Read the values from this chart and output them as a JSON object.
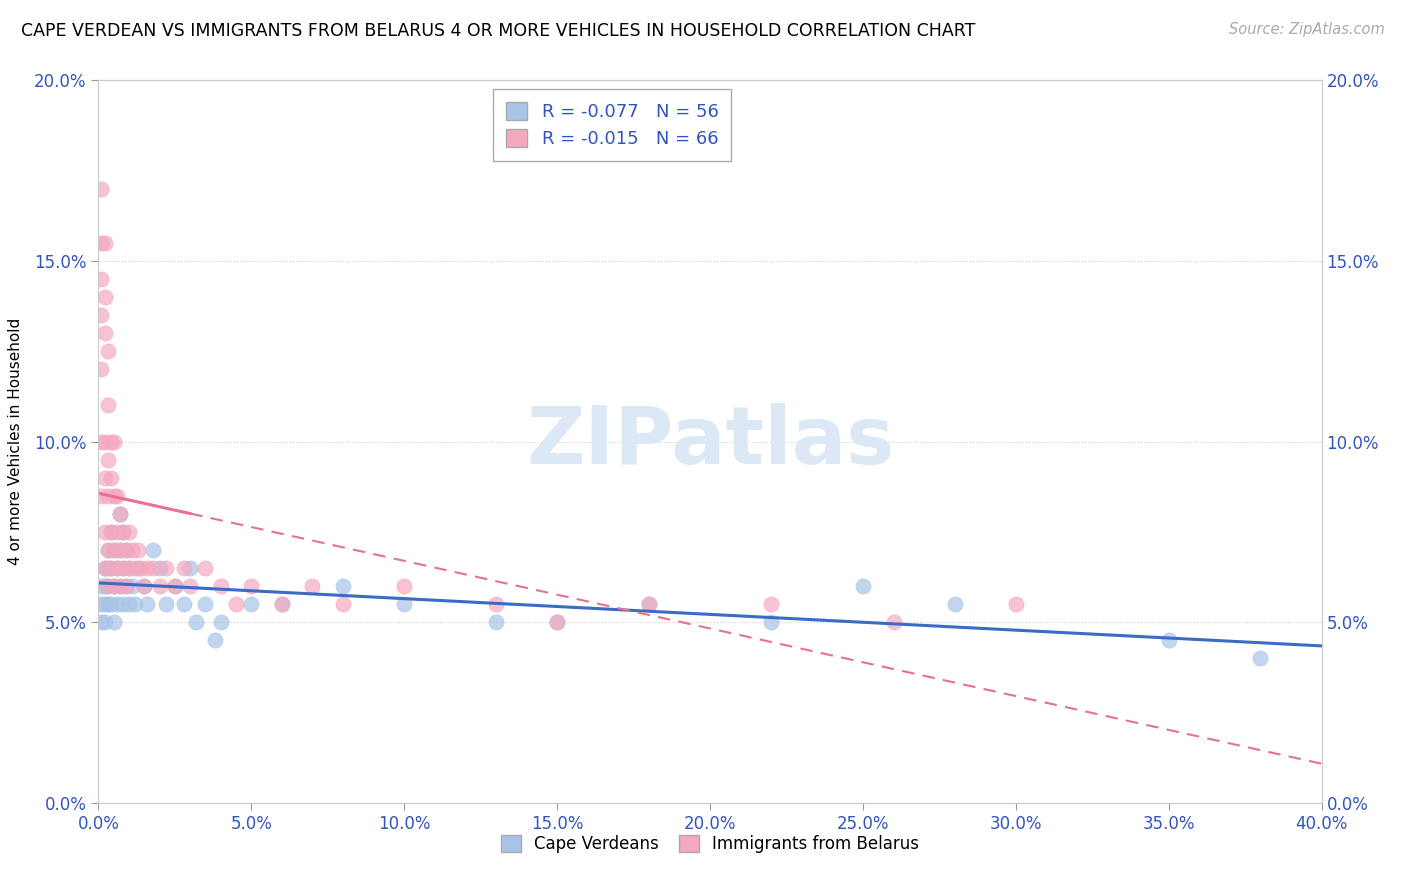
{
  "title": "CAPE VERDEAN VS IMMIGRANTS FROM BELARUS 4 OR MORE VEHICLES IN HOUSEHOLD CORRELATION CHART",
  "source": "Source: ZipAtlas.com",
  "ylabel": "4 or more Vehicles in Household",
  "xlim": [
    0.0,
    0.4
  ],
  "ylim": [
    0.0,
    0.2
  ],
  "xticks": [
    0.0,
    0.05,
    0.1,
    0.15,
    0.2,
    0.25,
    0.3,
    0.35,
    0.4
  ],
  "yticks": [
    0.0,
    0.05,
    0.1,
    0.15,
    0.2
  ],
  "xticklabels": [
    "0.0%",
    "5.0%",
    "10.0%",
    "15.0%",
    "20.0%",
    "25.0%",
    "30.0%",
    "35.0%",
    "40.0%"
  ],
  "yticklabels": [
    "0.0%",
    "5.0%",
    "10.0%",
    "15.0%",
    "20.0%"
  ],
  "series1_label": "Cape Verdeans",
  "series1_color": "#a8c4e8",
  "series1_line_color": "#3b6cc4",
  "series1_R": -0.077,
  "series1_N": 56,
  "series2_label": "Immigrants from Belarus",
  "series2_color": "#f4a8be",
  "series2_line_color": "#e87090",
  "series2_R": -0.015,
  "series2_N": 66,
  "legend_text_color": "#3355bb",
  "watermark": "ZIPatlas",
  "watermark_color": "#dce8f5",
  "series1_x": [
    0.001,
    0.001,
    0.001,
    0.002,
    0.002,
    0.002,
    0.002,
    0.003,
    0.003,
    0.003,
    0.003,
    0.004,
    0.004,
    0.004,
    0.005,
    0.005,
    0.005,
    0.006,
    0.006,
    0.007,
    0.007,
    0.007,
    0.008,
    0.008,
    0.008,
    0.009,
    0.009,
    0.01,
    0.01,
    0.011,
    0.012,
    0.013,
    0.015,
    0.016,
    0.018,
    0.02,
    0.022,
    0.025,
    0.028,
    0.03,
    0.032,
    0.035,
    0.038,
    0.04,
    0.05,
    0.06,
    0.08,
    0.1,
    0.13,
    0.15,
    0.18,
    0.22,
    0.25,
    0.28,
    0.35,
    0.38
  ],
  "series1_y": [
    0.06,
    0.055,
    0.05,
    0.065,
    0.06,
    0.055,
    0.05,
    0.07,
    0.065,
    0.06,
    0.055,
    0.075,
    0.065,
    0.055,
    0.07,
    0.06,
    0.05,
    0.065,
    0.055,
    0.08,
    0.07,
    0.06,
    0.075,
    0.065,
    0.055,
    0.07,
    0.06,
    0.065,
    0.055,
    0.06,
    0.055,
    0.065,
    0.06,
    0.055,
    0.07,
    0.065,
    0.055,
    0.06,
    0.055,
    0.065,
    0.05,
    0.055,
    0.045,
    0.05,
    0.055,
    0.055,
    0.06,
    0.055,
    0.05,
    0.05,
    0.055,
    0.05,
    0.06,
    0.055,
    0.045,
    0.04
  ],
  "series2_x": [
    0.001,
    0.001,
    0.001,
    0.001,
    0.001,
    0.001,
    0.001,
    0.002,
    0.002,
    0.002,
    0.002,
    0.002,
    0.002,
    0.002,
    0.003,
    0.003,
    0.003,
    0.003,
    0.003,
    0.003,
    0.004,
    0.004,
    0.004,
    0.004,
    0.005,
    0.005,
    0.005,
    0.005,
    0.006,
    0.006,
    0.006,
    0.007,
    0.007,
    0.007,
    0.008,
    0.008,
    0.009,
    0.009,
    0.01,
    0.01,
    0.011,
    0.012,
    0.013,
    0.014,
    0.015,
    0.016,
    0.018,
    0.02,
    0.022,
    0.025,
    0.028,
    0.03,
    0.035,
    0.04,
    0.045,
    0.05,
    0.06,
    0.07,
    0.08,
    0.1,
    0.13,
    0.15,
    0.18,
    0.22,
    0.26,
    0.3
  ],
  "series2_y": [
    0.17,
    0.155,
    0.145,
    0.135,
    0.12,
    0.1,
    0.085,
    0.155,
    0.14,
    0.13,
    0.1,
    0.09,
    0.075,
    0.065,
    0.125,
    0.11,
    0.095,
    0.085,
    0.07,
    0.06,
    0.1,
    0.09,
    0.075,
    0.065,
    0.1,
    0.085,
    0.07,
    0.06,
    0.085,
    0.075,
    0.065,
    0.08,
    0.07,
    0.06,
    0.075,
    0.065,
    0.07,
    0.06,
    0.075,
    0.065,
    0.07,
    0.065,
    0.07,
    0.065,
    0.06,
    0.065,
    0.065,
    0.06,
    0.065,
    0.06,
    0.065,
    0.06,
    0.065,
    0.06,
    0.055,
    0.06,
    0.055,
    0.06,
    0.055,
    0.06,
    0.055,
    0.05,
    0.055,
    0.055,
    0.05,
    0.055
  ]
}
